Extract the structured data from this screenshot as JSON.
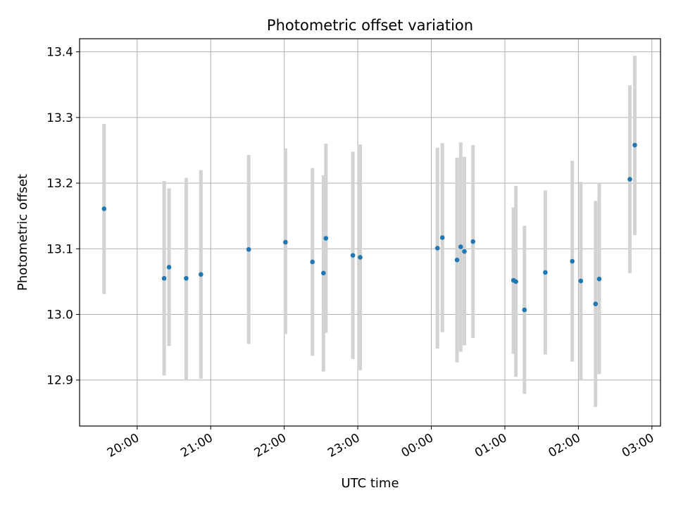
{
  "chart_data": {
    "type": "scatter",
    "title": "Photometric offset variation",
    "xlabel": "UTC time",
    "ylabel": "Photometric offset",
    "grid": true,
    "x_tick_labels": [
      "20:00",
      "21:00",
      "22:00",
      "23:00",
      "00:00",
      "01:00",
      "02:00",
      "03:00"
    ],
    "y_ticks": [
      12.9,
      13.0,
      13.1,
      13.2,
      13.3,
      13.4
    ],
    "y_tick_labels": [
      "12.9",
      "13.0",
      "13.1",
      "13.2",
      "13.3",
      "13.4"
    ],
    "xlim": [
      "19:13",
      "03:07"
    ],
    "ylim": [
      12.83,
      13.42
    ],
    "marker_color": "#1f77b4",
    "errorbar_color": "#d3d3d3",
    "series": [
      {
        "points": [
          {
            "x": "19:33",
            "y": 13.161,
            "err_low": 13.031,
            "err_high": 13.29
          },
          {
            "x": "20:22",
            "y": 13.055,
            "err_low": 12.907,
            "err_high": 13.203
          },
          {
            "x": "20:26",
            "y": 13.072,
            "err_low": 12.952,
            "err_high": 13.192
          },
          {
            "x": "20:40",
            "y": 13.055,
            "err_low": 12.9,
            "err_high": 13.208
          },
          {
            "x": "20:52",
            "y": 13.061,
            "err_low": 12.902,
            "err_high": 13.22
          },
          {
            "x": "21:31",
            "y": 13.099,
            "err_low": 12.955,
            "err_high": 13.243
          },
          {
            "x": "22:01",
            "y": 13.11,
            "err_low": 12.97,
            "err_high": 13.253
          },
          {
            "x": "22:23",
            "y": 13.08,
            "err_low": 12.937,
            "err_high": 13.223
          },
          {
            "x": "22:32",
            "y": 13.063,
            "err_low": 12.913,
            "err_high": 13.212
          },
          {
            "x": "22:34",
            "y": 13.116,
            "err_low": 12.972,
            "err_high": 13.26
          },
          {
            "x": "22:56",
            "y": 13.09,
            "err_low": 12.932,
            "err_high": 13.248
          },
          {
            "x": "23:02",
            "y": 13.087,
            "err_low": 12.915,
            "err_high": 13.259
          },
          {
            "x": "00:05",
            "y": 13.101,
            "err_low": 12.948,
            "err_high": 13.254
          },
          {
            "x": "00:09",
            "y": 13.117,
            "err_low": 12.973,
            "err_high": 13.261
          },
          {
            "x": "00:21",
            "y": 13.083,
            "err_low": 12.927,
            "err_high": 13.239
          },
          {
            "x": "00:24",
            "y": 13.103,
            "err_low": 12.943,
            "err_high": 13.262
          },
          {
            "x": "00:27",
            "y": 13.096,
            "err_low": 12.953,
            "err_high": 13.24
          },
          {
            "x": "00:34",
            "y": 13.111,
            "err_low": 12.964,
            "err_high": 13.258
          },
          {
            "x": "01:07",
            "y": 13.052,
            "err_low": 12.94,
            "err_high": 13.163
          },
          {
            "x": "01:09",
            "y": 13.05,
            "err_low": 12.905,
            "err_high": 13.196
          },
          {
            "x": "01:16",
            "y": 13.007,
            "err_low": 12.879,
            "err_high": 13.135
          },
          {
            "x": "01:33",
            "y": 13.064,
            "err_low": 12.939,
            "err_high": 13.189
          },
          {
            "x": "01:55",
            "y": 13.081,
            "err_low": 12.928,
            "err_high": 13.234
          },
          {
            "x": "02:02",
            "y": 13.051,
            "err_low": 12.9,
            "err_high": 13.202
          },
          {
            "x": "02:14",
            "y": 13.016,
            "err_low": 12.859,
            "err_high": 13.173
          },
          {
            "x": "02:17",
            "y": 13.054,
            "err_low": 12.909,
            "err_high": 13.199
          },
          {
            "x": "02:42",
            "y": 13.206,
            "err_low": 13.063,
            "err_high": 13.349
          },
          {
            "x": "02:46",
            "y": 13.258,
            "err_low": 13.121,
            "err_high": 13.394
          }
        ]
      }
    ]
  }
}
